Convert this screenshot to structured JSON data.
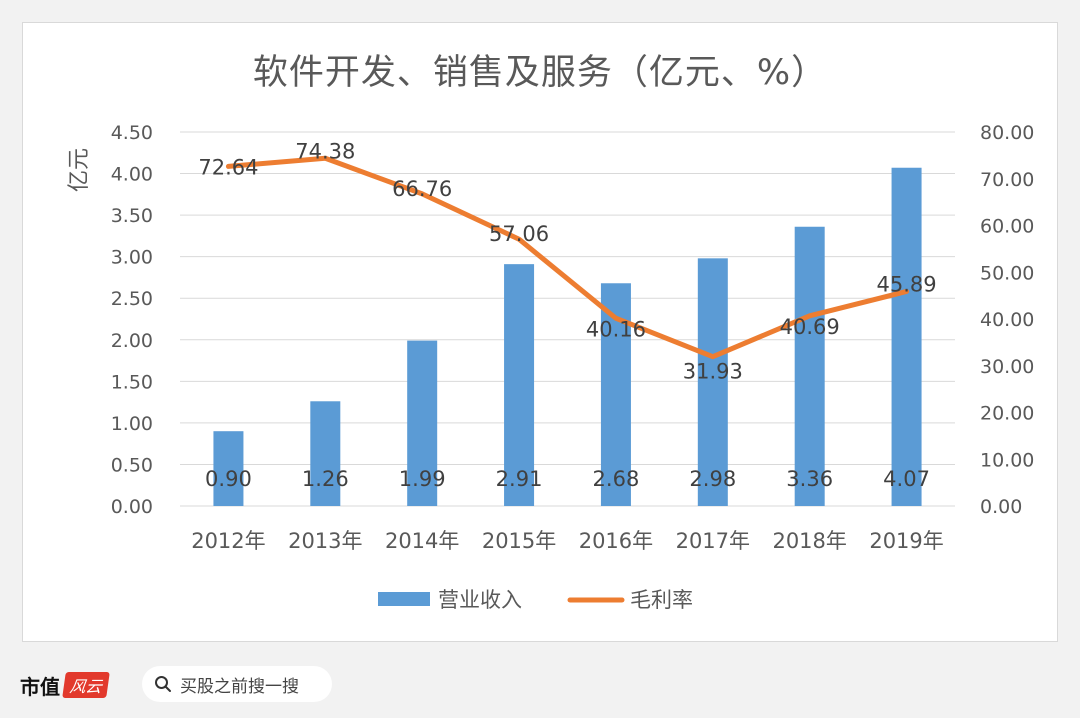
{
  "chart_data": {
    "type": "bar",
    "title": "软件开发、销售及服务（亿元、%）",
    "ylabel": "亿元",
    "categories": [
      "2012年",
      "2013年",
      "2014年",
      "2015年",
      "2016年",
      "2017年",
      "2018年",
      "2019年"
    ],
    "ylim": [
      0,
      4.5
    ],
    "y2lim": [
      0,
      80
    ],
    "y_ticks": [
      "0.00",
      "0.50",
      "1.00",
      "1.50",
      "2.00",
      "2.50",
      "3.00",
      "3.50",
      "4.00",
      "4.50"
    ],
    "y2_ticks": [
      "0.00",
      "10.00",
      "20.00",
      "30.00",
      "40.00",
      "50.00",
      "60.00",
      "70.00",
      "80.00"
    ],
    "grid": true,
    "legend_position": "bottom",
    "series": [
      {
        "name": "营业收入",
        "kind": "bar",
        "axis": "left",
        "color": "#5b9bd5",
        "values": [
          0.9,
          1.26,
          1.99,
          2.91,
          2.68,
          2.98,
          3.36,
          4.07
        ],
        "labels": [
          "0.90",
          "1.26",
          "1.99",
          "2.91",
          "2.68",
          "2.98",
          "3.36",
          "4.07"
        ]
      },
      {
        "name": "毛利率",
        "kind": "line",
        "axis": "right",
        "color": "#ed7d31",
        "values": [
          72.64,
          74.38,
          66.76,
          57.06,
          40.16,
          31.93,
          40.69,
          45.89
        ],
        "labels": [
          "72.64",
          "74.38",
          "66.76",
          "57.06",
          "40.16",
          "31.93",
          "40.69",
          "45.89"
        ]
      }
    ]
  },
  "footer": {
    "brand_text": "市值",
    "brand_mark": "风云",
    "search_label": "买股之前搜一搜",
    "search_icon": "search-icon"
  },
  "watermark": "市值风云"
}
